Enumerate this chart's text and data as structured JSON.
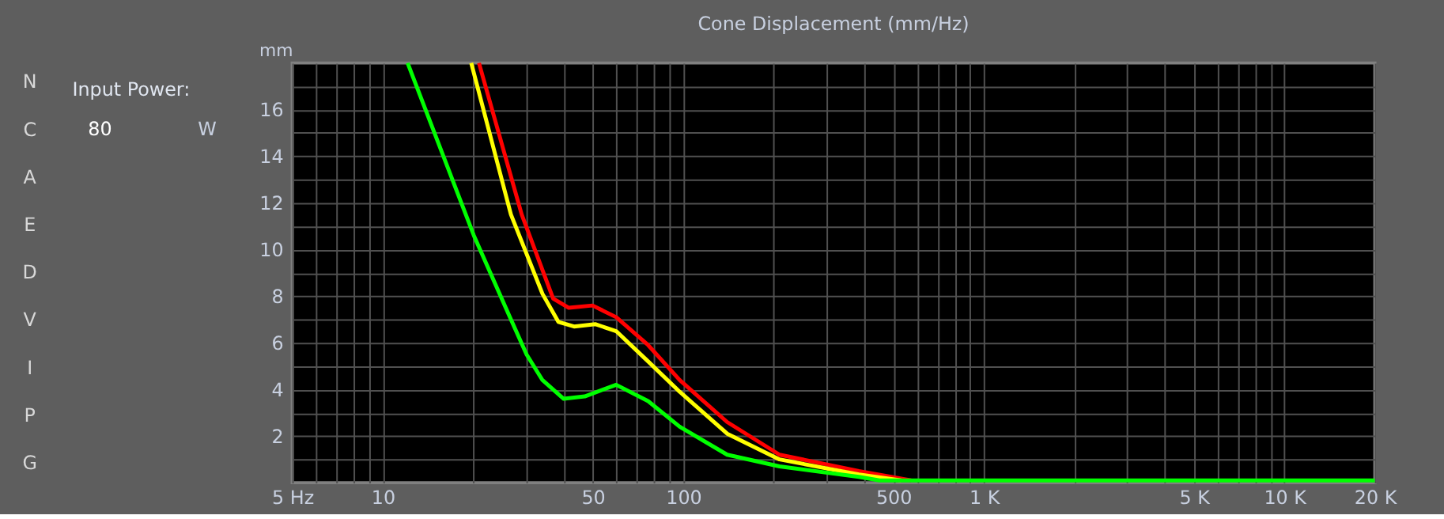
{
  "chart_data": {
    "type": "line",
    "title": "Cone Displacement (mm/Hz)",
    "ylabel": "mm",
    "annotations": [
      "Input Power:",
      "80",
      "W",
      "N",
      "C",
      "A",
      "E",
      "D",
      "V",
      "I",
      "P",
      "G"
    ],
    "log": "x",
    "grid": true,
    "marker": "none",
    "line_style": "solid",
    "xlim": [
      5,
      20000
    ],
    "ylim": [
      0,
      18
    ],
    "xticks": [
      {
        "value": 5,
        "label": "5 Hz"
      },
      {
        "value": 6,
        "label": null
      },
      {
        "value": 7,
        "label": null
      },
      {
        "value": 8,
        "label": null
      },
      {
        "value": 9,
        "label": null
      },
      10,
      {
        "value": 20,
        "label": null
      },
      {
        "value": 30,
        "label": null
      },
      {
        "value": 40,
        "label": null
      },
      50,
      {
        "value": 60,
        "label": null
      },
      {
        "value": 70,
        "label": null
      },
      {
        "value": 80,
        "label": null
      },
      {
        "value": 90,
        "label": null
      },
      100,
      {
        "value": 200,
        "label": null
      },
      {
        "value": 300,
        "label": null
      },
      {
        "value": 400,
        "label": null
      },
      500,
      {
        "value": 600,
        "label": null
      },
      {
        "value": 700,
        "label": null
      },
      {
        "value": 800,
        "label": null
      },
      {
        "value": 900,
        "label": null
      },
      {
        "value": 1000,
        "label": "1 K"
      },
      {
        "value": 2000,
        "label": null
      },
      {
        "value": 3000,
        "label": null
      },
      {
        "value": 4000,
        "label": null
      },
      {
        "value": 5000,
        "label": "5 K"
      },
      {
        "value": 6000,
        "label": null
      },
      {
        "value": 7000,
        "label": null
      },
      {
        "value": 8000,
        "label": null
      },
      {
        "value": 9000,
        "label": null
      },
      {
        "value": 10000,
        "label": "10 K"
      },
      {
        "value": 20000,
        "label": "20 K"
      }
    ],
    "yticks": [
      {
        "value": 1,
        "label": null
      },
      2,
      {
        "value": 3,
        "label": null
      },
      4,
      {
        "value": 5,
        "label": null
      },
      6,
      {
        "value": 7,
        "label": null
      },
      8,
      {
        "value": 9,
        "label": null
      },
      10,
      {
        "value": 11,
        "label": null
      },
      12,
      {
        "value": 13,
        "label": null
      },
      14,
      {
        "value": 15,
        "label": null
      },
      16,
      {
        "value": 17,
        "label": null
      }
    ],
    "series": [
      {
        "color": "#ff0000",
        "x": [
          20.9,
          29,
          36.9,
          41.6,
          49.9,
          59.8,
          76.4,
          97.3,
          140,
          209,
          384,
          573
        ],
        "values": [
          18,
          11.5,
          7.9,
          7.5,
          7.6,
          7.1,
          5.9,
          4.4,
          2.6,
          1.2,
          0.5,
          0.1
        ]
      },
      {
        "color": "#ffff00",
        "x": [
          19.7,
          26.7,
          34,
          38.4,
          43.3,
          50.9,
          59.8,
          76.4,
          97.3,
          140,
          209,
          384,
          531
        ],
        "values": [
          18,
          11.5,
          8.1,
          6.9,
          6.7,
          6.8,
          6.5,
          5.2,
          3.9,
          2.1,
          1.0,
          0.35,
          0.1
        ]
      },
      {
        "color": "#00ff00",
        "x": [
          12.1,
          20.1,
          26.7,
          30.1,
          34,
          40,
          47,
          59.8,
          76.4,
          97.3,
          140,
          209,
          384,
          450,
          20000
        ],
        "values": [
          18,
          10.6,
          7.0,
          5.5,
          4.4,
          3.6,
          3.7,
          4.2,
          3.5,
          2.4,
          1.2,
          0.7,
          0.25,
          0.1,
          0.1
        ]
      }
    ]
  }
}
